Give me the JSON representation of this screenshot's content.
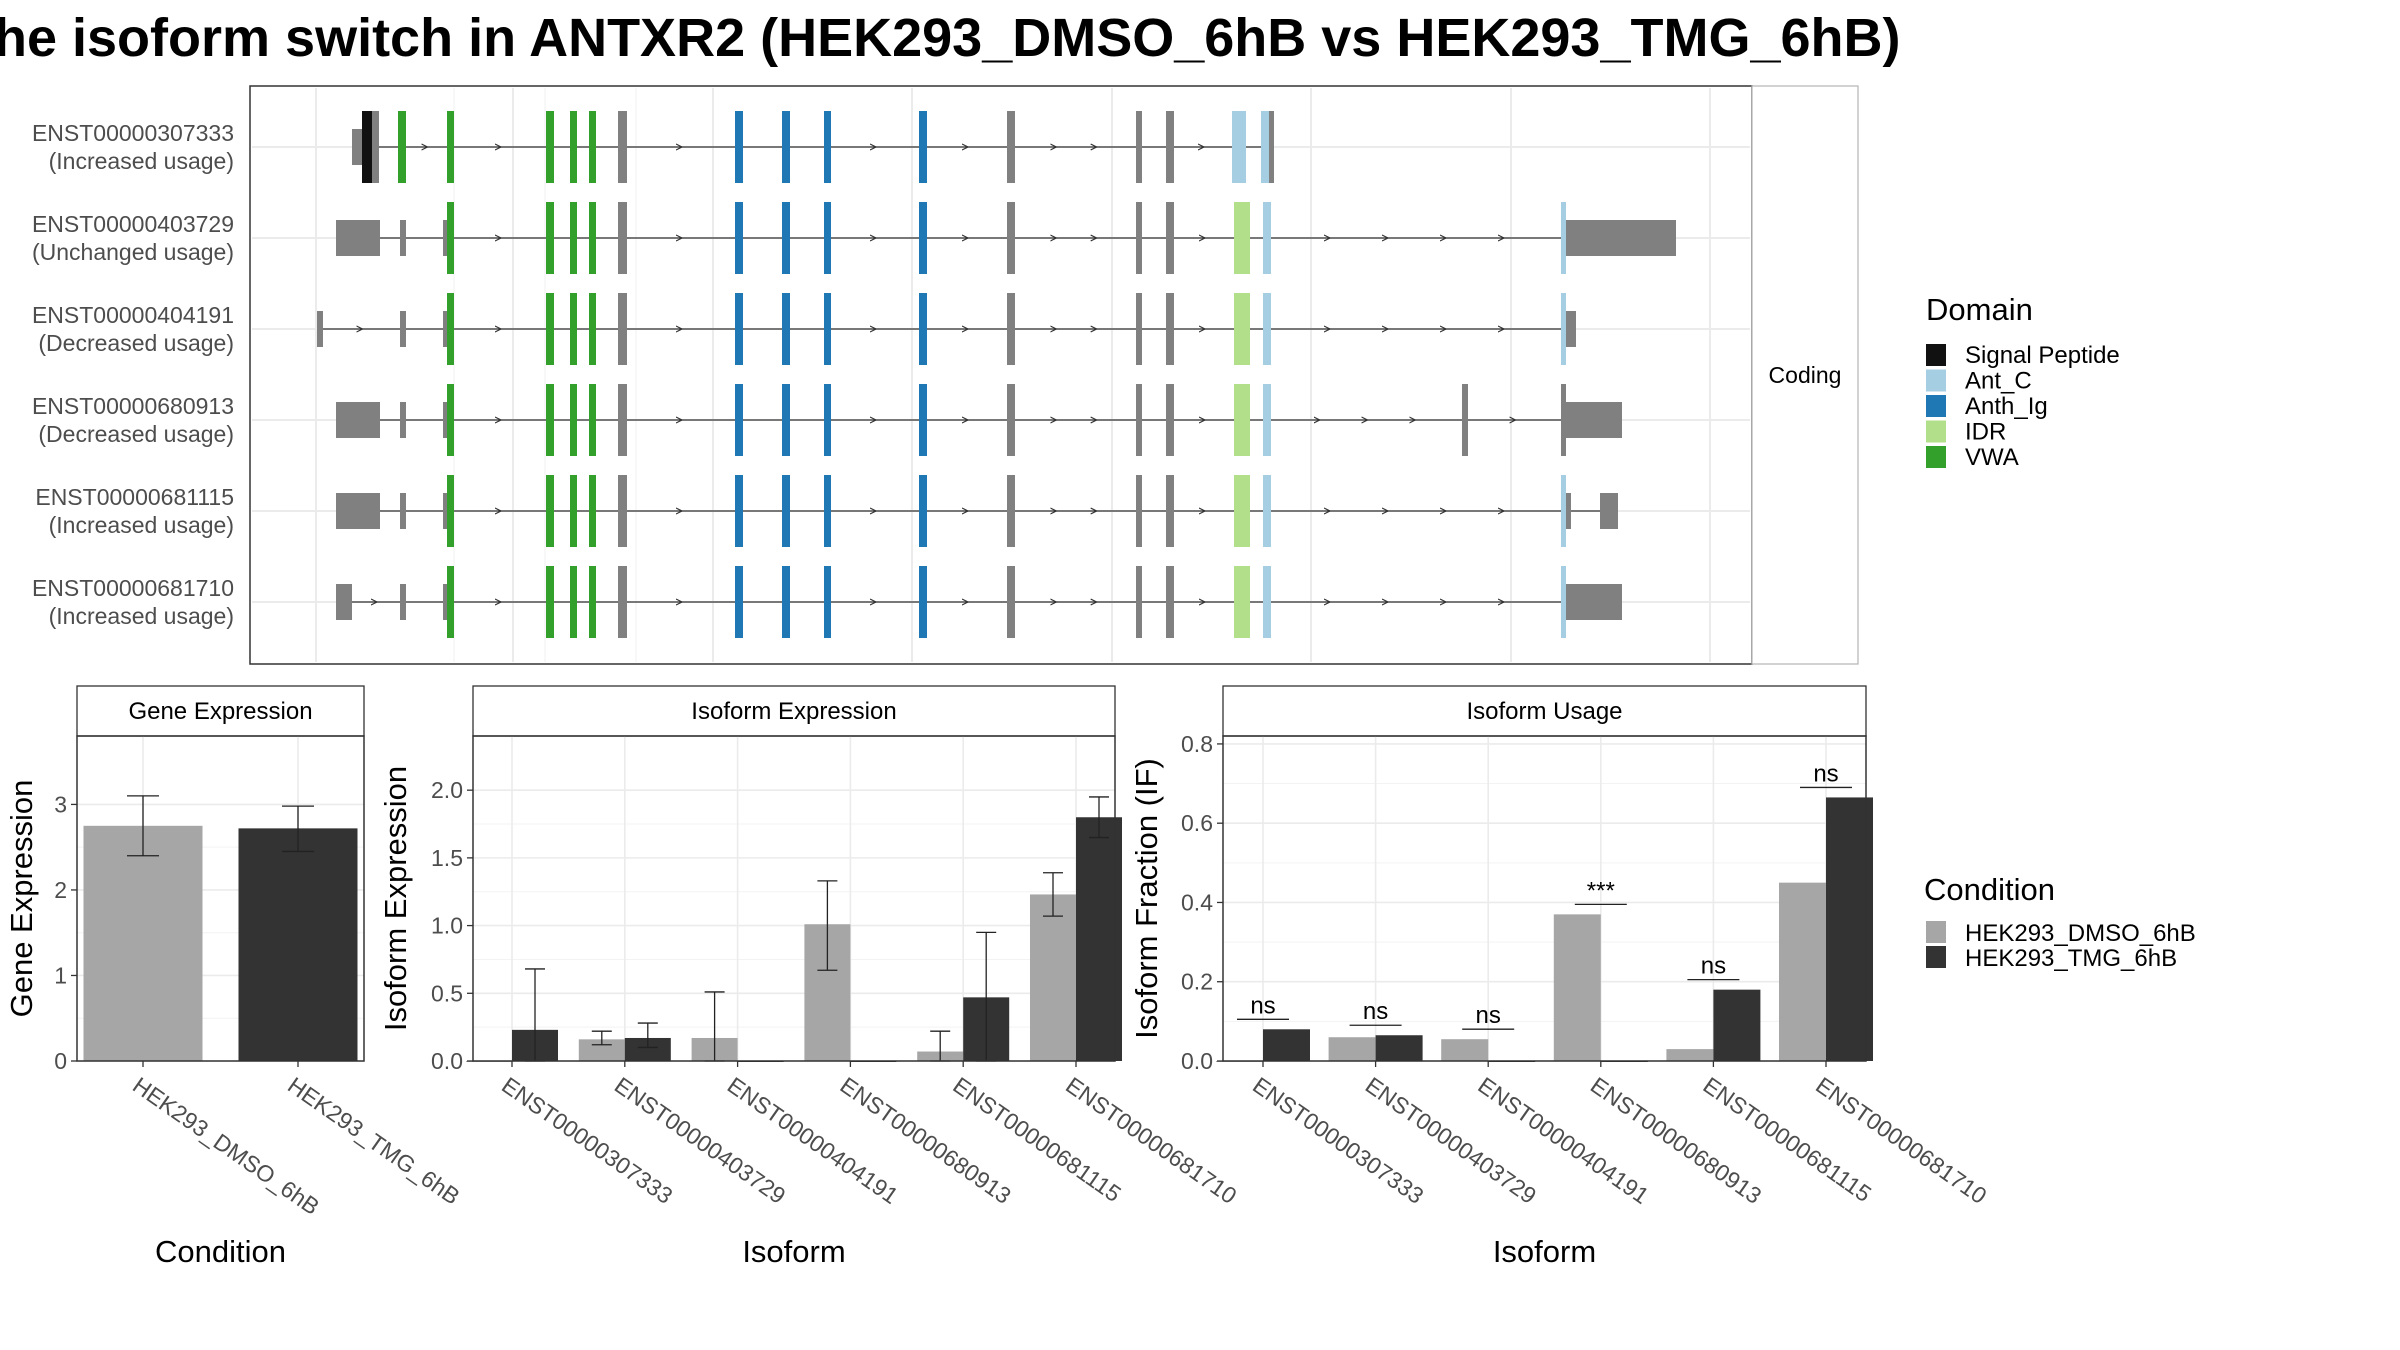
{
  "title": "he isoform switch in ANTXR2 (HEK293_DMSO_6hB vs HEK293_TMG_6hB)",
  "colors": {
    "dmso": "#a6a6a6",
    "tmg": "#333333",
    "noncoding_exon": "#808080",
    "signal_peptide": "#111111",
    "ant_c": "#a6cee3",
    "anth_ig": "#1f78b4",
    "idr": "#b2df8a",
    "vwa": "#33a02c"
  },
  "chart_data": [
    {
      "type": "gene_structure",
      "strip_label": "Coding",
      "isoforms": [
        {
          "id": "ENST00000307333",
          "usage": "(Increased usage)"
        },
        {
          "id": "ENST00000403729",
          "usage": "(Unchanged usage)"
        },
        {
          "id": "ENST00000404191",
          "usage": "(Decreased usage)"
        },
        {
          "id": "ENST00000680913",
          "usage": "(Decreased usage)"
        },
        {
          "id": "ENST00000681115",
          "usage": "(Increased usage)"
        },
        {
          "id": "ENST00000681710",
          "usage": "(Increased usage)"
        }
      ],
      "legend": {
        "title": "Domain",
        "items": [
          {
            "label": "Signal Peptide",
            "color": "#111111"
          },
          {
            "label": "Ant_C",
            "color": "#a6cee3"
          },
          {
            "label": "Anth_Ig",
            "color": "#1f78b4"
          },
          {
            "label": "IDR",
            "color": "#b2df8a"
          },
          {
            "label": "VWA",
            "color": "#33a02c"
          }
        ]
      }
    },
    {
      "type": "bar",
      "title": "Gene Expression",
      "xlabel": "Condition",
      "ylabel": "Gene Expression",
      "ylim": [
        0,
        3.8
      ],
      "yticks": [
        "0",
        "1",
        "2",
        "3"
      ],
      "categories": [
        "HEK293_DMSO_6hB",
        "HEK293_TMG_6hB"
      ],
      "values": [
        2.75,
        2.72
      ],
      "errors": [
        [
          2.4,
          3.1
        ],
        [
          2.45,
          2.98
        ]
      ]
    },
    {
      "type": "bar",
      "title": "Isoform Expression",
      "xlabel": "Isoform",
      "ylabel": "Isoform Expression",
      "ylim": [
        0,
        2.4
      ],
      "yticks": [
        "0.0",
        "0.5",
        "1.0",
        "1.5",
        "2.0"
      ],
      "categories": [
        "ENST00000307333",
        "ENST00000403729",
        "ENST00000404191",
        "ENST00000680913",
        "ENST00000681115",
        "ENST00000681710"
      ],
      "series": [
        {
          "name": "HEK293_DMSO_6hB",
          "values": [
            0.0,
            0.16,
            0.17,
            1.01,
            0.07,
            1.23
          ],
          "errors": [
            [
              0.0,
              0.0
            ],
            [
              0.12,
              0.22
            ],
            [
              0.0,
              0.51
            ],
            [
              0.67,
              1.33
            ],
            [
              0.0,
              0.22
            ],
            [
              1.07,
              1.39
            ]
          ]
        },
        {
          "name": "HEK293_TMG_6hB",
          "values": [
            0.23,
            0.17,
            0.0,
            0.0,
            0.47,
            1.8
          ],
          "errors": [
            [
              0.0,
              0.68
            ],
            [
              0.1,
              0.28
            ],
            [
              0.0,
              0.0
            ],
            [
              0.0,
              0.0
            ],
            [
              0.0,
              0.95
            ],
            [
              1.65,
              1.95
            ]
          ]
        }
      ]
    },
    {
      "type": "bar",
      "title": "Isoform Usage",
      "xlabel": "Isoform",
      "ylabel": "Isoform Fraction (IF)",
      "ylim": [
        0,
        0.82
      ],
      "yticks": [
        "0.0",
        "0.2",
        "0.4",
        "0.6",
        "0.8"
      ],
      "categories": [
        "ENST00000307333",
        "ENST00000403729",
        "ENST00000404191",
        "ENST00000680913",
        "ENST00000681115",
        "ENST00000681710"
      ],
      "series": [
        {
          "name": "HEK293_DMSO_6hB",
          "values": [
            0.0,
            0.06,
            0.055,
            0.37,
            0.03,
            0.45
          ]
        },
        {
          "name": "HEK293_TMG_6hB",
          "values": [
            0.08,
            0.065,
            0.0,
            0.0,
            0.18,
            0.665
          ]
        }
      ],
      "significance": [
        "ns",
        "ns",
        "ns",
        "***",
        "ns",
        "ns"
      ]
    }
  ],
  "condition_legend": {
    "title": "Condition",
    "items": [
      "HEK293_DMSO_6hB",
      "HEK293_TMG_6hB"
    ]
  }
}
